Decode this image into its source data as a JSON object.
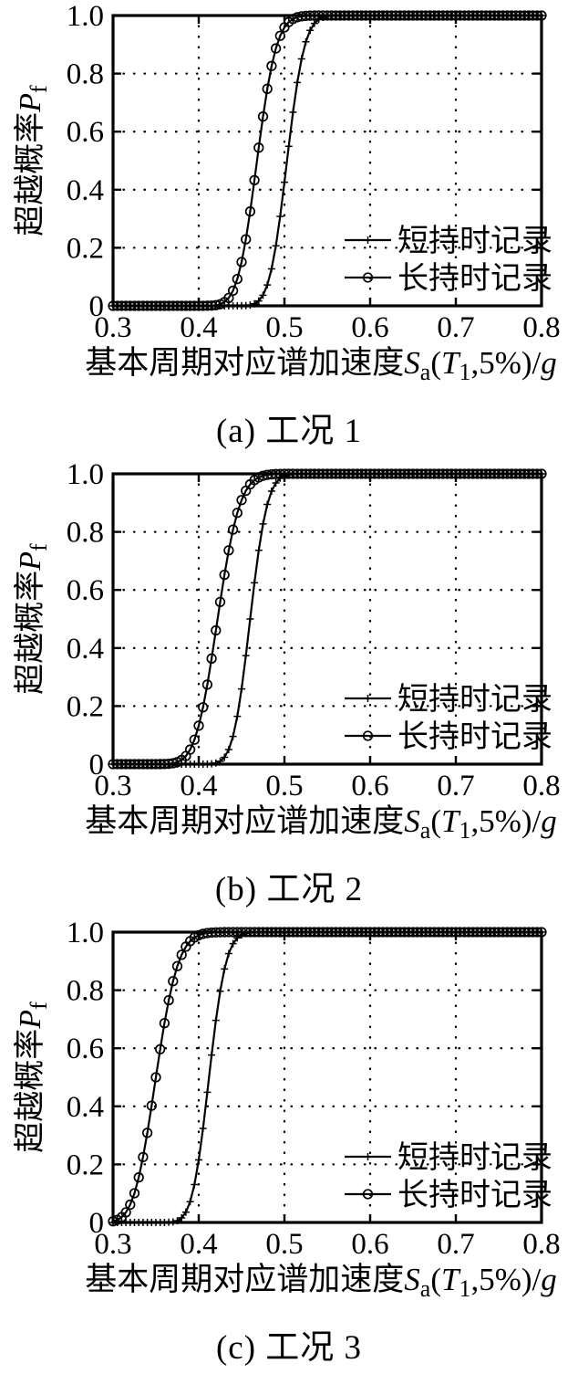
{
  "page": {
    "background": "#ffffff",
    "ink_color": "#000000"
  },
  "axes_shared": {
    "xlabel_parts": [
      {
        "t": "基本周期对应谱加速度"
      },
      {
        "t": "S",
        "italic": true
      },
      {
        "t": "a",
        "sub": true
      },
      {
        "t": "("
      },
      {
        "t": "T",
        "italic": true
      },
      {
        "t": "1",
        "sub": true
      },
      {
        "t": ",5%)/"
      },
      {
        "t": "g",
        "italic": true
      }
    ],
    "ylabel_parts": [
      {
        "t": "超越概率"
      },
      {
        "t": "P",
        "italic": true
      },
      {
        "t": "f",
        "sub": true
      }
    ]
  },
  "chart_data": [
    {
      "id": "a",
      "type": "line",
      "caption": "(a) 工况 1",
      "xlabel": "基本周期对应谱加速度Sa(T1,5%)/g",
      "ylabel": "超越概率Pf",
      "xlim": [
        0.3,
        0.8
      ],
      "ylim": [
        0,
        1
      ],
      "xticks": [
        0.3,
        0.4,
        0.5,
        0.6,
        0.7,
        0.8
      ],
      "xtick_labels": [
        "0.3",
        "0.4",
        "0.5",
        "0.6",
        "0.7",
        "0.8"
      ],
      "yticks": [
        0,
        0.2,
        0.4,
        0.6,
        0.8,
        1.0
      ],
      "ytick_labels": [
        "0",
        "0.2",
        "0.4",
        "0.6",
        "0.8",
        "1.0"
      ],
      "grid": "dotted",
      "legend_position": "bottom-right",
      "sample_step": 0.005,
      "series": [
        {
          "name": "短持时记录",
          "marker": "plus",
          "model": "lognormal_cdf",
          "median": 0.503,
          "beta": 0.032
        },
        {
          "name": "长持时记录",
          "marker": "circle",
          "model": "lognormal_cdf",
          "median": 0.468,
          "beta": 0.038
        }
      ]
    },
    {
      "id": "b",
      "type": "line",
      "caption": "(b) 工况 2",
      "xlabel": "基本周期对应谱加速度Sa(T1,5%)/g",
      "ylabel": "超越概率Pf",
      "xlim": [
        0.3,
        0.8
      ],
      "ylim": [
        0,
        1
      ],
      "xticks": [
        0.3,
        0.4,
        0.5,
        0.6,
        0.7,
        0.8
      ],
      "xtick_labels": [
        "0.3",
        "0.4",
        "0.5",
        "0.6",
        "0.7",
        "0.8"
      ],
      "yticks": [
        0,
        0.2,
        0.4,
        0.6,
        0.8,
        1.0
      ],
      "ytick_labels": [
        "0",
        "0.2",
        "0.4",
        "0.6",
        "0.8",
        "1.0"
      ],
      "grid": "dotted",
      "legend_position": "bottom-right",
      "sample_step": 0.005,
      "series": [
        {
          "name": "短持时记录",
          "marker": "plus",
          "model": "lognormal_cdf",
          "median": 0.46,
          "beta": 0.034
        },
        {
          "name": "长持时记录",
          "marker": "circle",
          "model": "lognormal_cdf",
          "median": 0.422,
          "beta": 0.048
        }
      ]
    },
    {
      "id": "c",
      "type": "line",
      "caption": "(c) 工况 3",
      "xlabel": "基本周期对应谱加速度Sa(T1,5%)/g",
      "ylabel": "超越概率Pf",
      "xlim": [
        0.3,
        0.8
      ],
      "ylim": [
        0,
        1
      ],
      "xticks": [
        0.3,
        0.4,
        0.5,
        0.6,
        0.7,
        0.8
      ],
      "xtick_labels": [
        "0.3",
        "0.4",
        "0.5",
        "0.6",
        "0.7",
        "0.8"
      ],
      "yticks": [
        0,
        0.2,
        0.4,
        0.6,
        0.8,
        1.0
      ],
      "ytick_labels": [
        "0",
        "0.2",
        "0.4",
        "0.6",
        "0.8",
        "1.0"
      ],
      "grid": "dotted",
      "legend_position": "bottom-right",
      "sample_step": 0.005,
      "series": [
        {
          "name": "短持时记录",
          "marker": "plus",
          "model": "lognormal_cdf",
          "median": 0.412,
          "beta": 0.0375
        },
        {
          "name": "长持时记录",
          "marker": "circle",
          "model": "lognormal_cdf",
          "median": 0.35,
          "beta": 0.058
        }
      ]
    }
  ]
}
